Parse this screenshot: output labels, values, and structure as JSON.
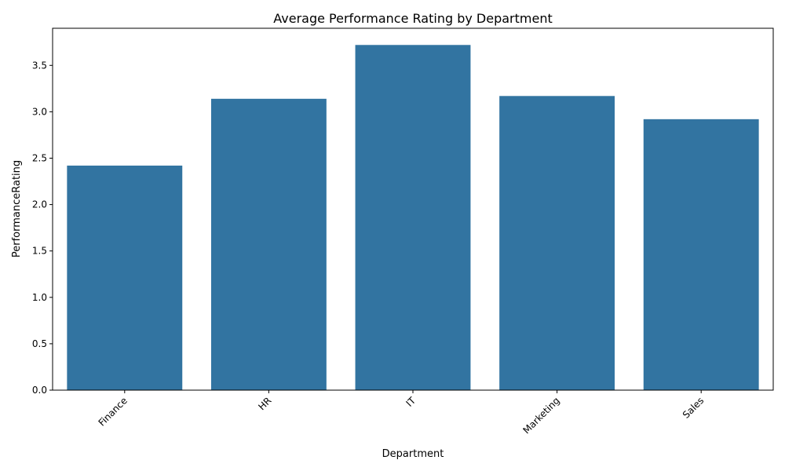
{
  "chart_data": {
    "type": "bar",
    "title": "Average Performance Rating by Department",
    "xlabel": "Department",
    "ylabel": "PerformanceRating",
    "categories": [
      "Finance",
      "HR",
      "IT",
      "Marketing",
      "Sales"
    ],
    "values": [
      2.42,
      3.14,
      3.72,
      3.17,
      2.92
    ],
    "ylim": [
      0,
      3.9
    ],
    "yticks": [
      "0.0",
      "0.5",
      "1.0",
      "1.5",
      "2.0",
      "2.5",
      "3.0",
      "3.5"
    ],
    "x_tick_rotation_deg": 45,
    "bar_color": "#3274a1",
    "grid": false,
    "legend": "none"
  }
}
